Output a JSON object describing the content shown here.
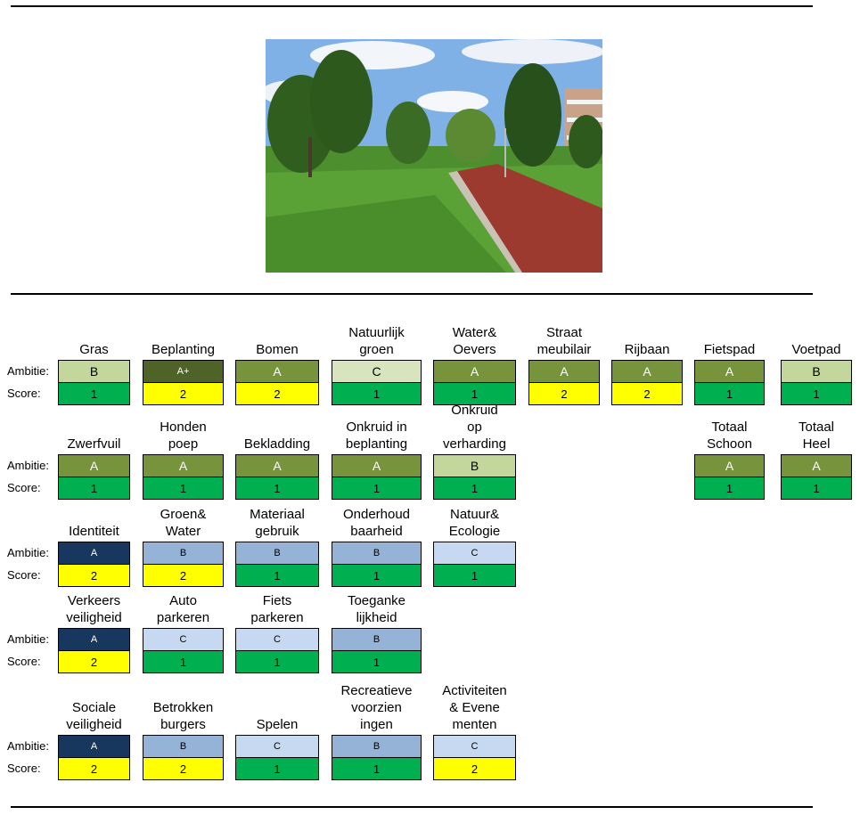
{
  "row_labels": {
    "ambitie": "Ambitie:",
    "score": "Score:"
  },
  "colors": {
    "dark_olive": "#4F6228",
    "olive": "#77933C",
    "light_olive": "#C3D69B",
    "very_light_olive": "#D7E4BD",
    "green": "#00B050",
    "yellow": "#FFFF00",
    "navy": "#17375E",
    "blue": "#95B3D7",
    "light_blue": "#C6D9F1"
  },
  "photo": {
    "subject": "park-with-trees-lawn-and-red-cycle-path"
  },
  "groups": [
    {
      "items": [
        {
          "label": "Gras",
          "ambitie": "B",
          "score": "1"
        },
        {
          "label": "Beplanting",
          "ambitie": "A+",
          "score": "2"
        },
        {
          "label": "Bomen",
          "ambitie": "A",
          "score": "2"
        },
        {
          "label": "Natuurlijk\ngroen",
          "ambitie": "C",
          "score": "1"
        },
        {
          "label": "Water&\nOevers",
          "ambitie": "A",
          "score": "1"
        },
        {
          "label": "Straat\nmeubilair",
          "ambitie": "A",
          "score": "2"
        },
        {
          "label": "Rijbaan",
          "ambitie": "A",
          "score": "2"
        },
        {
          "label": "Fietspad",
          "ambitie": "A",
          "score": "1"
        },
        {
          "label": "Voetpad",
          "ambitie": "B",
          "score": "1"
        }
      ]
    },
    {
      "items": [
        {
          "label": "Zwerfvuil",
          "ambitie": "A",
          "score": "1"
        },
        {
          "label": "Honden\npoep",
          "ambitie": "A",
          "score": "1"
        },
        {
          "label": "Bekladding",
          "ambitie": "A",
          "score": "1"
        },
        {
          "label": "Onkruid in\nbeplanting",
          "ambitie": "A",
          "score": "1"
        },
        {
          "label": "Onkruid\nop\nverharding",
          "ambitie": "B",
          "score": "1"
        },
        {
          "label": "Totaal\nSchoon",
          "ambitie": "A",
          "score": "1"
        },
        {
          "label": "Totaal\nHeel",
          "ambitie": "A",
          "score": "1"
        }
      ]
    },
    {
      "items": [
        {
          "label": "Identiteit",
          "ambitie": "A",
          "score": "2"
        },
        {
          "label": "Groen&\nWater",
          "ambitie": "B",
          "score": "2"
        },
        {
          "label": "Materiaal\ngebruik",
          "ambitie": "B",
          "score": "1"
        },
        {
          "label": "Onderhoud\nbaarheid",
          "ambitie": "B",
          "score": "1"
        },
        {
          "label": "Natuur&\nEcologie",
          "ambitie": "C",
          "score": "1"
        }
      ]
    },
    {
      "items": [
        {
          "label": "Verkeers\nveiligheid",
          "ambitie": "A",
          "score": "2"
        },
        {
          "label": "Auto\nparkeren",
          "ambitie": "C",
          "score": "1"
        },
        {
          "label": "Fiets\nparkeren",
          "ambitie": "C",
          "score": "1"
        },
        {
          "label": "Toeganke\nlijkheid",
          "ambitie": "B",
          "score": "1"
        }
      ]
    },
    {
      "items": [
        {
          "label": "Sociale\nveiligheid",
          "ambitie": "A",
          "score": "2"
        },
        {
          "label": "Betrokken\nburgers",
          "ambitie": "B",
          "score": "2"
        },
        {
          "label": "Spelen",
          "ambitie": "C",
          "score": "1"
        },
        {
          "label": "Recreatieve\nvoorzien\ningen",
          "ambitie": "B",
          "score": "1"
        },
        {
          "label": "Activiteiten\n& Evene\nmenten",
          "ambitie": "C",
          "score": "2"
        }
      ]
    }
  ]
}
